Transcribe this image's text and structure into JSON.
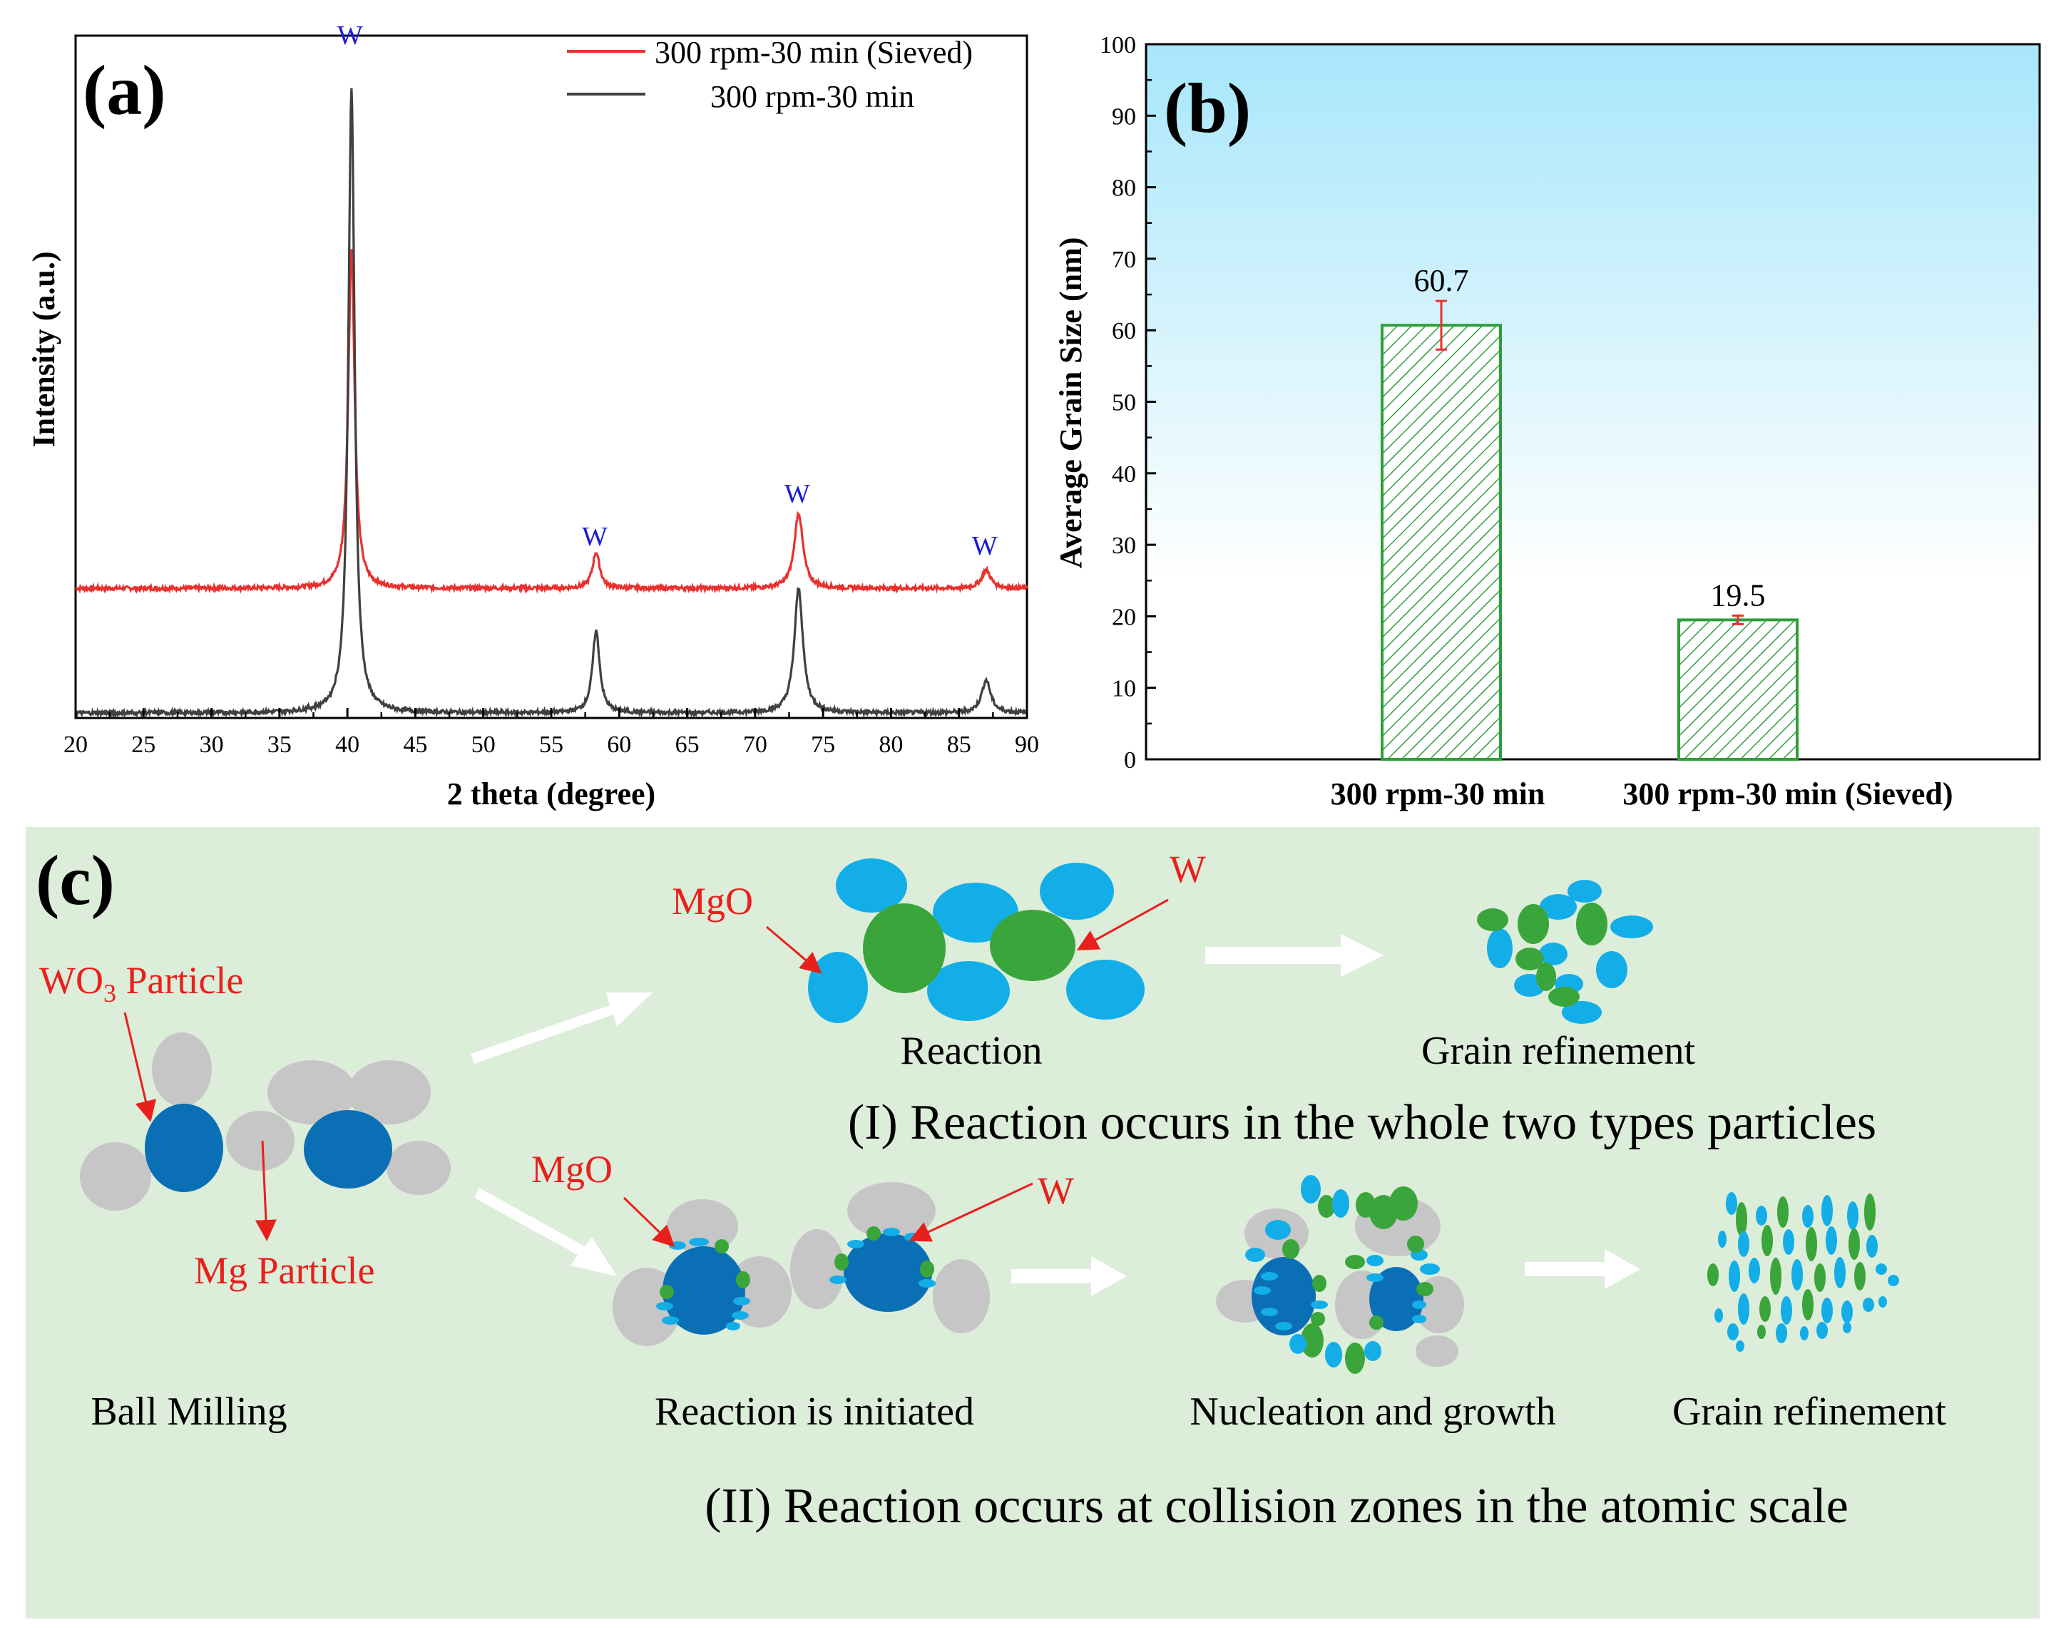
{
  "chart_data": [
    {
      "panel": "a",
      "type": "line",
      "panel_label": "(a)",
      "xlabel": "2 theta (degree)",
      "ylabel": "Intensity (a.u.)",
      "xlim": [
        20,
        90
      ],
      "xticks": [
        "20",
        "25",
        "30",
        "35",
        "40",
        "45",
        "50",
        "55",
        "60",
        "65",
        "70",
        "75",
        "80",
        "85",
        "90"
      ],
      "series": [
        {
          "name": "300 rpm-30 min (Sieved)",
          "color": "#e8312f",
          "baseline": 0.19,
          "peaks": [
            {
              "x": 40.3,
              "h": 0.52,
              "w": 0.28
            },
            {
              "x": 58.3,
              "h": 0.055,
              "w": 0.32
            },
            {
              "x": 73.2,
              "h": 0.115,
              "w": 0.38
            },
            {
              "x": 87.0,
              "h": 0.028,
              "w": 0.4
            }
          ]
        },
        {
          "name": "300 rpm-30 min",
          "color": "#404040",
          "baseline": 0.0,
          "peaks": [
            {
              "x": 40.3,
              "h": 0.95,
              "w": 0.28
            },
            {
              "x": 58.3,
              "h": 0.125,
              "w": 0.32
            },
            {
              "x": 73.2,
              "h": 0.19,
              "w": 0.38
            },
            {
              "x": 87.0,
              "h": 0.05,
              "w": 0.4
            }
          ]
        }
      ],
      "annotations": [
        {
          "text": "W",
          "x": 40.3
        },
        {
          "text": "W",
          "x": 58.3
        },
        {
          "text": "W",
          "x": 73.2
        },
        {
          "text": "W",
          "x": 87.0
        }
      ],
      "legend_position": "top-right"
    },
    {
      "panel": "b",
      "type": "bar",
      "panel_label": "(b)",
      "categories": [
        "300 rpm-30 min",
        "300 rpm-30 min (Sieved)"
      ],
      "values": [
        60.7,
        19.5
      ],
      "value_labels": [
        "60.7",
        "19.5"
      ],
      "errors": [
        3.4,
        0.6
      ],
      "ylabel": "Average Grain Size (nm)",
      "ylim": [
        0,
        100
      ],
      "yticks": [
        "0",
        "10",
        "20",
        "30",
        "40",
        "50",
        "60",
        "70",
        "80",
        "90",
        "100"
      ],
      "bar_color": "#2e9e3a",
      "error_color": "#e8312f",
      "background_gradient": [
        "#a7e6fb",
        "#ffffff"
      ]
    }
  ],
  "schematic": {
    "panel_label": "(c)",
    "background": "#dcedd9",
    "labels": {
      "wo3": "WO",
      "wo3_sub": "3",
      "wo3_suffix": " Particle",
      "mg": "Mg Particle",
      "ball_milling": "Ball Milling",
      "mgo_top": "MgO",
      "w_top": "W",
      "reaction": "Reaction",
      "grain_refinement_top": "Grain refinement",
      "route_1": "(I) Reaction occurs in the whole two types particles",
      "mgo_bottom": "MgO",
      "w_bottom": "W",
      "reaction_initiated": "Reaction  is initiated",
      "nucleation": "Nucleation  and growth",
      "grain_refinement_bottom": "Grain refinement",
      "route_2": "(II) Reaction occurs at collision zones in the atomic scale"
    },
    "colors": {
      "wo3": "#0a6fb5",
      "mg": "#c6c6c6",
      "mgo": "#13aee8",
      "w": "#3aa53a",
      "label": "#e8201c",
      "arrow": "#ffffff"
    }
  }
}
